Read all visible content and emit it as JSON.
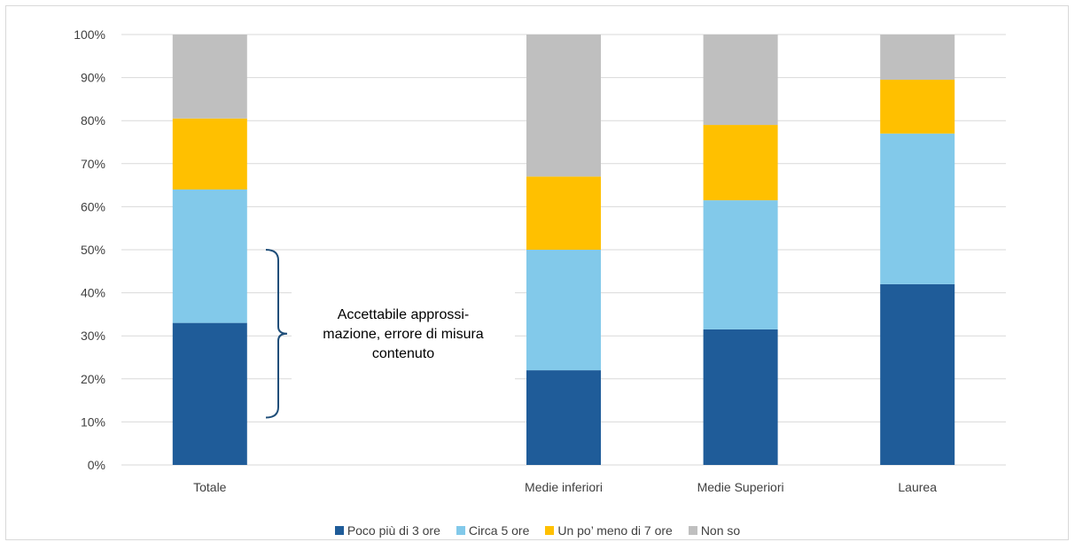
{
  "chart_data": {
    "type": "bar",
    "stacked": true,
    "categories": [
      "Totale",
      "",
      "Medie inferiori",
      "Medie Superiori",
      "Laurea"
    ],
    "series": [
      {
        "name": "Poco più di 3 ore",
        "color": "#1f5c99",
        "values": [
          33,
          null,
          22,
          31.5,
          42
        ]
      },
      {
        "name": "Circa 5 ore",
        "color": "#82c9ea",
        "values": [
          31,
          null,
          28,
          30,
          35
        ]
      },
      {
        "name": "Un po’ meno di 7 ore",
        "color": "#ffc000",
        "values": [
          16.5,
          null,
          17,
          17.5,
          12.5
        ]
      },
      {
        "name": "Non so",
        "color": "#bfbfbf",
        "values": [
          19.5,
          null,
          33,
          21,
          10.5
        ]
      }
    ],
    "ylim": [
      0,
      100
    ],
    "ytick_step": 10,
    "ytick_format": "percent",
    "grid": true,
    "legend_position": "bottom",
    "annotation": {
      "text_lines": [
        "Accettabile approssi-",
        "mazione, errore di misura",
        "contenuto"
      ],
      "range": [
        11,
        50
      ],
      "bracket_color": "#1f4e79"
    }
  }
}
